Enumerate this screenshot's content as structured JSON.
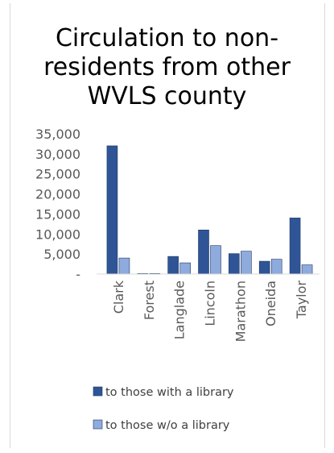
{
  "chart_data": {
    "type": "bar",
    "title_lines": [
      "Circulation to non-",
      "residents from other",
      "WVLS county"
    ],
    "title": "Circulation to non-residents from other WVLS county",
    "categories": [
      "Clark",
      "Forest",
      "Langlade",
      "Lincoln",
      "Marathon",
      "Oneida",
      "Taylor"
    ],
    "series": [
      {
        "name": "to those with a library",
        "color": "#2f5597",
        "values": [
          32000,
          150,
          4400,
          11000,
          5100,
          3200,
          14000
        ]
      },
      {
        "name": "to those w/o a library",
        "color": "#8faadc",
        "values": [
          4000,
          150,
          2800,
          7100,
          5700,
          3700,
          2300
        ]
      }
    ],
    "ylim": [
      0,
      35000
    ],
    "yticks": [
      {
        "value": 0,
        "label": "-"
      },
      {
        "value": 5000,
        "label": "5,000"
      },
      {
        "value": 10000,
        "label": "10,000"
      },
      {
        "value": 15000,
        "label": "15,000"
      },
      {
        "value": 20000,
        "label": "20,000"
      },
      {
        "value": 25000,
        "label": "25,000"
      },
      {
        "value": 30000,
        "label": "30,000"
      },
      {
        "value": 35000,
        "label": "35,000"
      }
    ],
    "grid": false,
    "legend_position": "bottom",
    "xlabel": "",
    "ylabel": ""
  }
}
